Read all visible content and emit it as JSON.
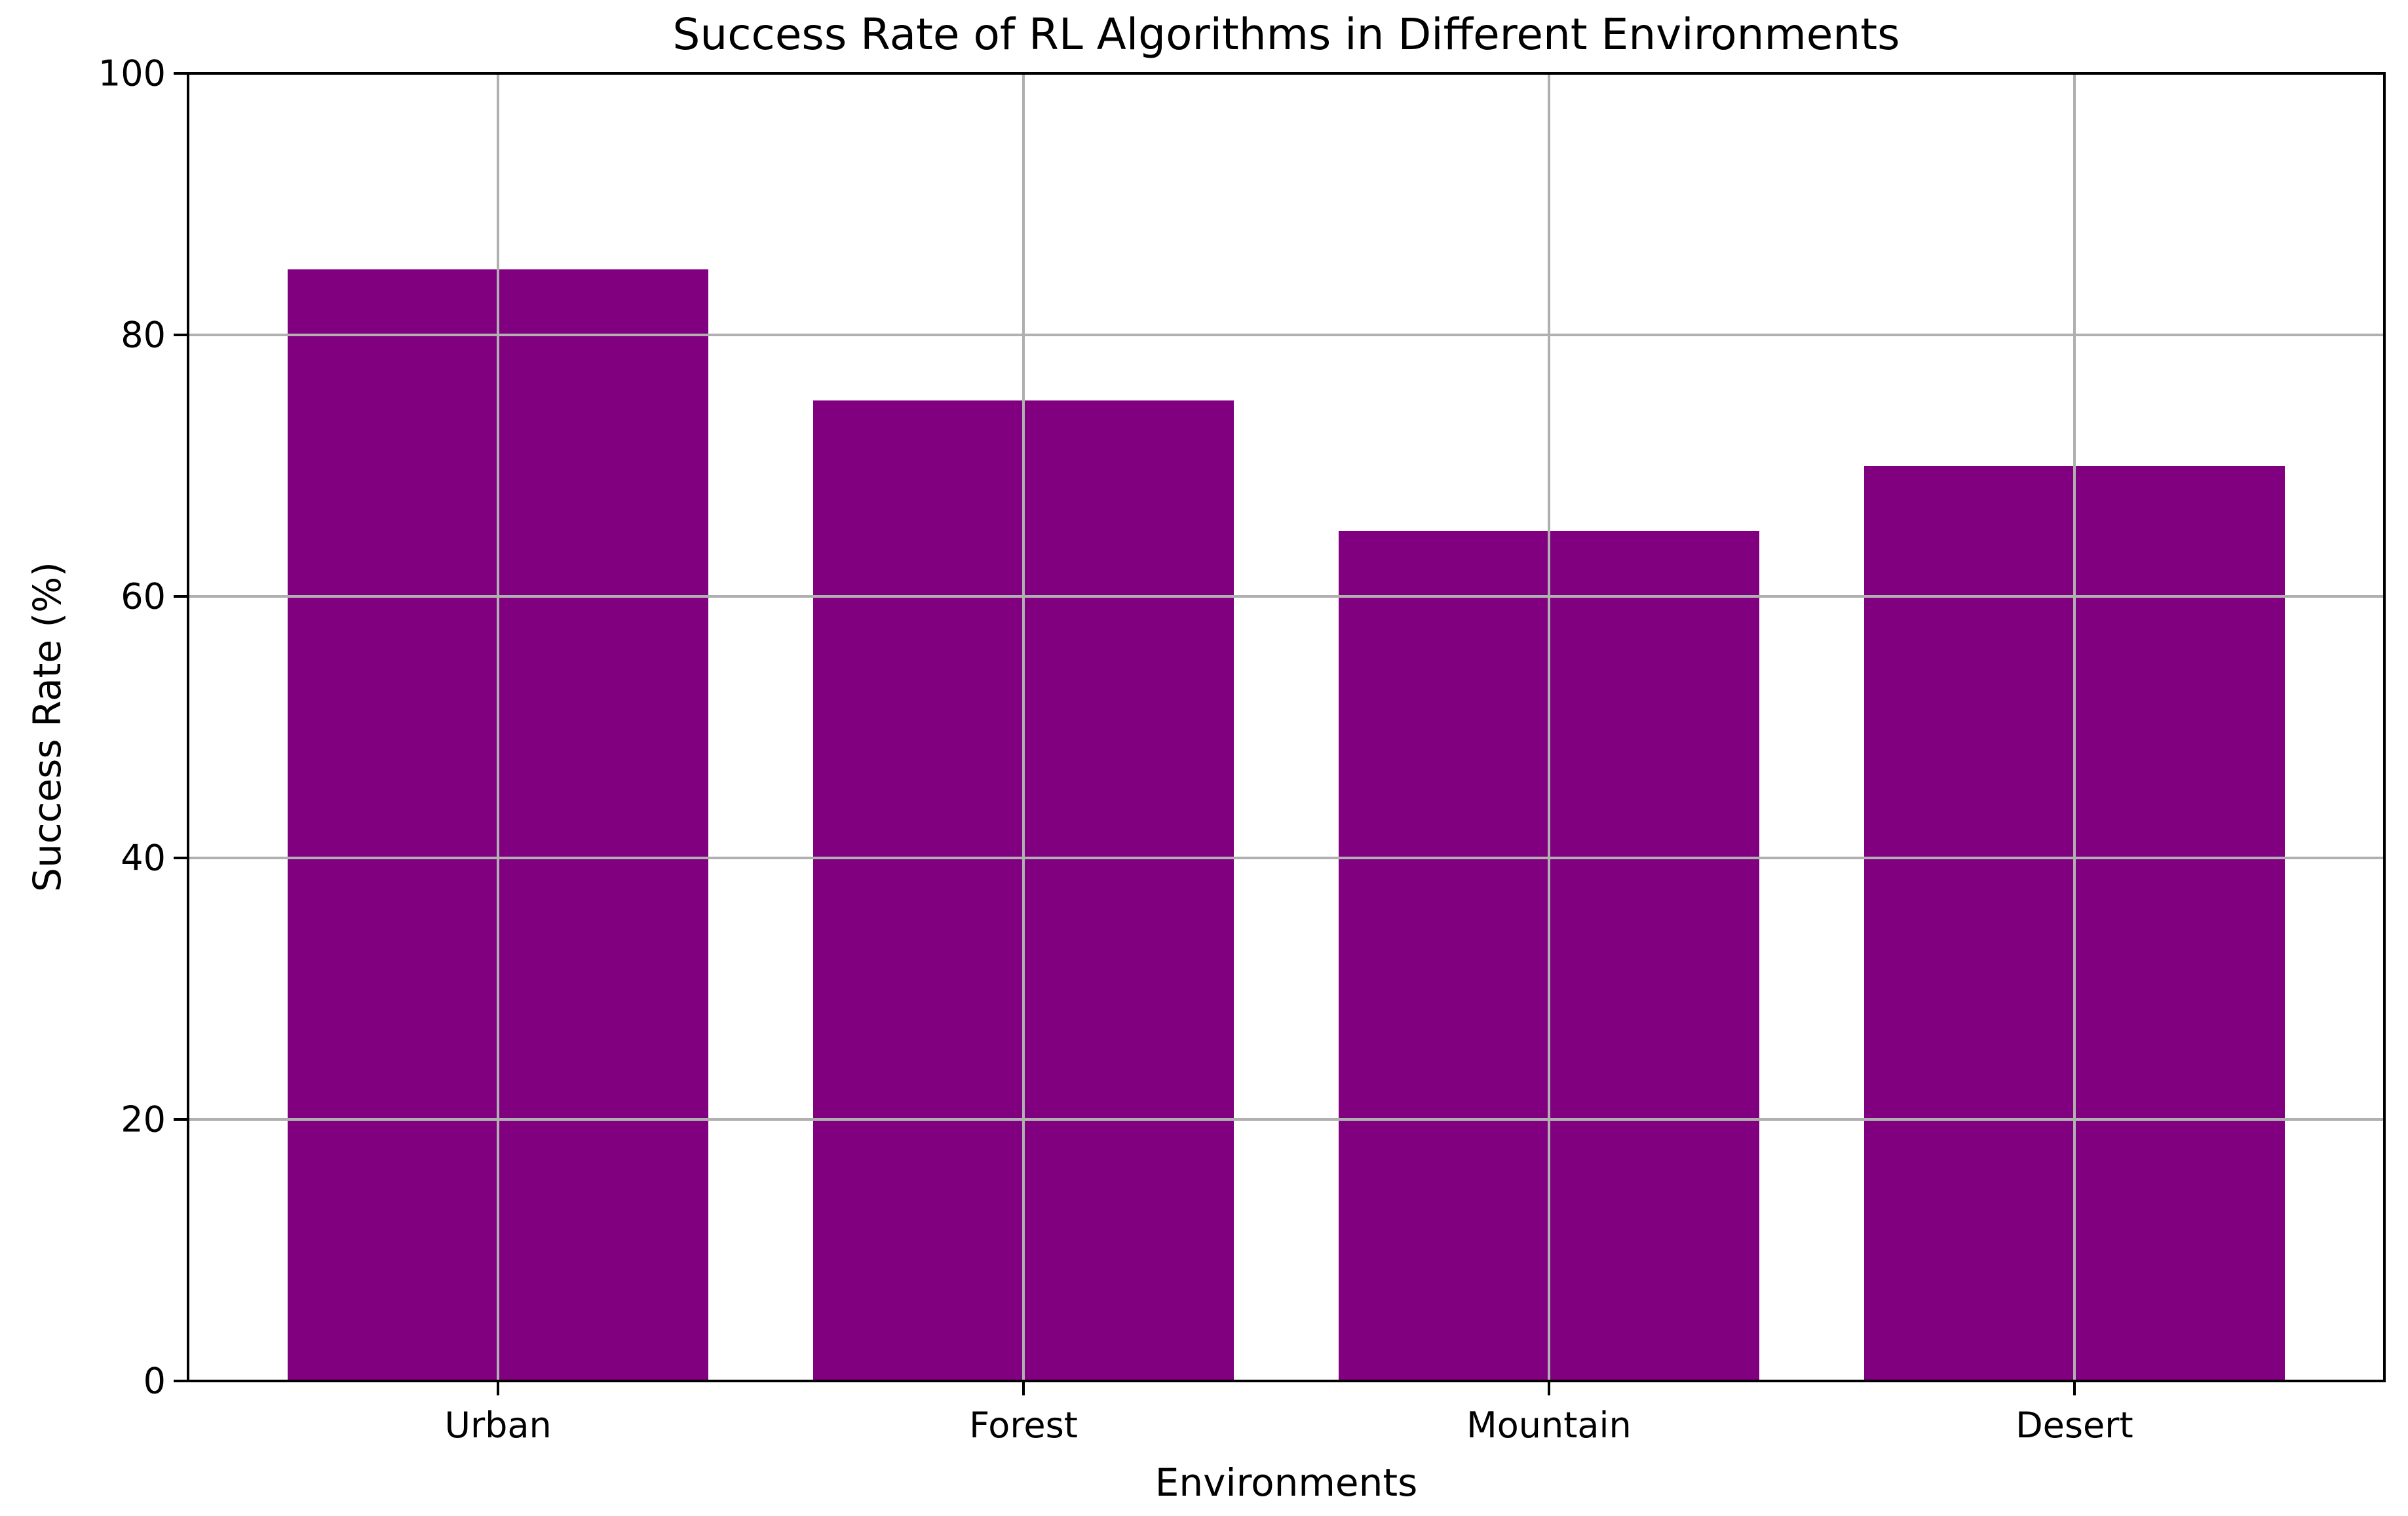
{
  "chart_data": {
    "type": "bar",
    "title": "Success Rate of RL Algorithms in Different Environments",
    "xlabel": "Environments",
    "ylabel": "Success Rate (%)",
    "categories": [
      "Urban",
      "Forest",
      "Mountain",
      "Desert"
    ],
    "values": [
      85,
      75,
      65,
      70
    ],
    "ylim": [
      0,
      100
    ],
    "yticks": [
      0,
      20,
      40,
      60,
      80,
      100
    ],
    "ytick_labels": [
      "0",
      "20",
      "40",
      "60",
      "80",
      "100"
    ],
    "bar_color": "#800080",
    "grid": true,
    "grid_on_top": true,
    "grid_color": "#b0b0b0",
    "spine_color": "#000000",
    "legend_position": "none",
    "xlim_units": [
      -0.59,
      3.59
    ],
    "bar_width_units": 0.8
  }
}
